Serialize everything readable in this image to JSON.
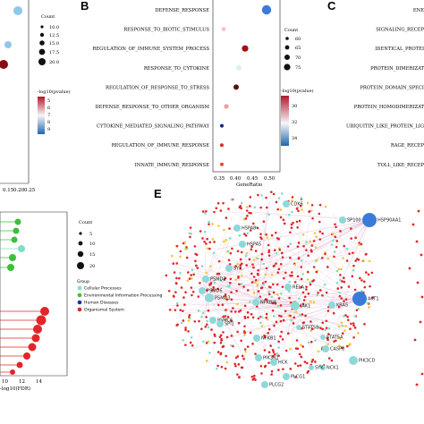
{
  "panels": {
    "B": {
      "label": "B"
    },
    "C": {
      "label": "C"
    },
    "E": {
      "label": "E"
    }
  },
  "panel_a_partial": {
    "legend_count_title": "Count",
    "legend_count_values": [
      "10.0",
      "12.5",
      "15.0",
      "17.5",
      "20.0"
    ],
    "legend_color_title": "-log10(pvalue)",
    "legend_color_ticks": [
      "5",
      "6",
      "7",
      "8",
      "9"
    ],
    "x_ticks": [
      "0.15",
      "0.20",
      "0.25"
    ]
  },
  "panel_b": {
    "categories": [
      "DEFENSE_RESPONSE",
      "RESPONSE_TO_BIOTIC_STIMULUS",
      "REGULATION_OF_IMMUNE_SYSTEM_PROCESS",
      "RESPONSE_TO_CYTOKINE",
      "REGULATION_OF_RESPONSE_TO_STRESS",
      "DEFENSE_RESPONSE_TO_OTHER_ORGANISM",
      "CYTOKINE_MEDIATED_SIGNALING_PATHWAY",
      "REGULATION_OF_IMMUNE_RESPONSE",
      "INNATE_IMMUNE_RESPONSE"
    ],
    "x_ticks": [
      "0.35",
      "0.40",
      "0.45",
      "0.50"
    ],
    "xlabel": "GeneRatio",
    "legend_count_title": "Count",
    "legend_count_values": [
      "60",
      "65",
      "70",
      "75"
    ],
    "legend_color_title": "-log10(pvalue)",
    "legend_color_ticks": [
      "30",
      "32",
      "34"
    ]
  },
  "panel_c_partial": {
    "categories": [
      "ENE",
      "SIGNALING_RECEP",
      "IDENTICAL_PROTEI",
      "PROTEIN_DIMERIZAT",
      "PROTEIN_DOMAIN_SPECI",
      "PROTEIN_HOMODIMERIZAT",
      "UBIQUITIN_LIKE_PROTEIN_LIG",
      "RAGE_RECEP",
      "TOLL_LIKE_RECEP"
    ]
  },
  "panel_d_partial": {
    "legend_count_title": "Count",
    "legend_count_values": [
      "5",
      "10",
      "15",
      "20"
    ],
    "legend_group_title": "Group",
    "groups": [
      {
        "name": "Cellular Processes",
        "color": "#7ee0c0"
      },
      {
        "name": "Environmental Information Processing",
        "color": "#3bbf3b"
      },
      {
        "name": "Human Diseases",
        "color": "#1a2f9c"
      },
      {
        "name": "Organismal System",
        "color": "#e0262a"
      }
    ],
    "x_ticks": [
      "0",
      "2",
      "4",
      "6",
      "8",
      "10",
      "12",
      "14"
    ],
    "xlabel": "-log10(FDR)"
  },
  "panel_e": {
    "genes": [
      "CDK6",
      "SP100",
      "HSP90AA1",
      "HSPA8",
      "HSPA5",
      "SYK",
      "PSMD2",
      "PSMD6",
      "RELA",
      "PSMD3",
      "NFKBIA",
      "JAK1",
      "KRAS",
      "AKT1",
      "PSMC6",
      "STAT5B",
      "NFKB1",
      "SPI1",
      "STAT5A",
      "CASP8",
      "PIK3R1",
      "HCK",
      "NCK1",
      "SYK",
      "PIK3CD",
      "PLCG1",
      "PLCG2"
    ]
  },
  "colors": {
    "red_node": "#e0262a",
    "teal_node": "#7ee0c0",
    "blue_node": "#3b7bd8",
    "gene_node": "#8fd8d8",
    "edge_color": "#d8a8c8",
    "yellow_node": "#f0c830"
  }
}
